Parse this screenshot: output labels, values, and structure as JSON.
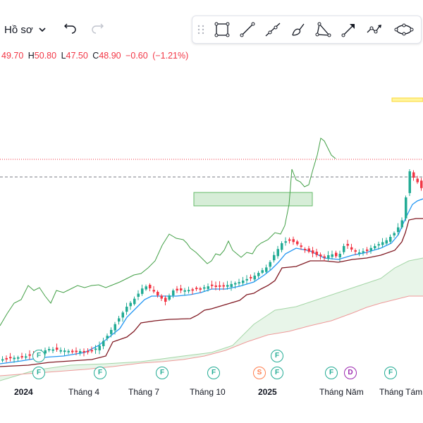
{
  "header": {
    "profile_label": "Hồ sơ",
    "ohlc": {
      "o_label": "",
      "o_value": "49.70",
      "h_label": "H",
      "h_value": "50.80",
      "l_label": "L",
      "l_value": "47.50",
      "c_label": "C",
      "c_value": "48.90",
      "change": "−0.60",
      "change_pct": "(−1.21%)"
    }
  },
  "drawing_tools": [
    {
      "name": "rectangle-tool-icon"
    },
    {
      "name": "trend-line-tool-icon"
    },
    {
      "name": "ray-tool-icon"
    },
    {
      "name": "brush-tool-icon"
    },
    {
      "name": "triangle-tool-icon"
    },
    {
      "name": "arrow-tool-icon"
    },
    {
      "name": "path-tool-icon"
    },
    {
      "name": "ellipse-tool-icon"
    }
  ],
  "x_axis": {
    "labels": [
      "2024",
      "Tháng 4",
      "Tháng 7",
      "Tháng 10",
      "2025",
      "Tháng Năm",
      "Tháng Tám"
    ]
  },
  "events": {
    "row1": [
      "F",
      "F",
      "F",
      "F",
      "S",
      "F",
      "F",
      "D",
      "F"
    ],
    "row2": [
      "F",
      "F"
    ]
  },
  "colors": {
    "up": "#22ab94",
    "down": "#f23645",
    "kijun": "#801922",
    "tenkan": "#2196f3",
    "lagging": "#43a047",
    "cloud": "#e8f5e9",
    "highlight_zone": "#a5d6a7",
    "yellow_zone": "#fff59d"
  }
}
